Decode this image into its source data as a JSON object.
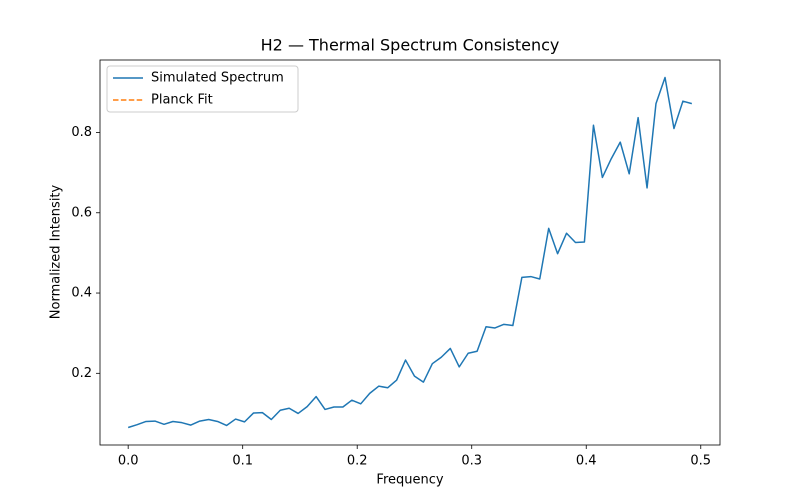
{
  "chart_data": {
    "type": "line",
    "title": "H2 — Thermal Spectrum Consistency",
    "xlabel": "Frequency",
    "ylabel": "Normalized Intensity",
    "x": [
      0,
      0.0078,
      0.0156,
      0.0234,
      0.0313,
      0.0391,
      0.0469,
      0.0547,
      0.0625,
      0.0703,
      0.0781,
      0.0859,
      0.0938,
      0.1016,
      0.1094,
      0.1172,
      0.125,
      0.1328,
      0.1406,
      0.1484,
      0.1563,
      0.1641,
      0.1719,
      0.1797,
      0.1875,
      0.1953,
      0.2031,
      0.2109,
      0.2188,
      0.2266,
      0.2344,
      0.2422,
      0.25,
      0.2578,
      0.2656,
      0.2734,
      0.2813,
      0.2891,
      0.2969,
      0.3047,
      0.3125,
      0.3203,
      0.3281,
      0.3359,
      0.3438,
      0.3516,
      0.3594,
      0.3672,
      0.375,
      0.3828,
      0.3906,
      0.3984,
      0.4063,
      0.4141,
      0.4219,
      0.4297,
      0.4375,
      0.4453,
      0.4531,
      0.4609,
      0.4688,
      0.4766,
      0.4844,
      0.4922
    ],
    "series": [
      {
        "name": "Simulated Spectrum",
        "color": "#1f77b4",
        "dash": "solid",
        "values": [
          0.065,
          0.072,
          0.08,
          0.081,
          0.073,
          0.08,
          0.077,
          0.071,
          0.081,
          0.085,
          0.08,
          0.07,
          0.086,
          0.079,
          0.101,
          0.102,
          0.085,
          0.108,
          0.113,
          0.1,
          0.117,
          0.142,
          0.11,
          0.116,
          0.116,
          0.133,
          0.124,
          0.15,
          0.168,
          0.164,
          0.183,
          0.233,
          0.193,
          0.178,
          0.224,
          0.24,
          0.262,
          0.216,
          0.25,
          0.255,
          0.316,
          0.313,
          0.322,
          0.319,
          0.439,
          0.441,
          0.435,
          0.561,
          0.498,
          0.549,
          0.526,
          0.527,
          0.818,
          0.688,
          0.735,
          0.776,
          0.697,
          0.837,
          0.662,
          0.872,
          0.937,
          0.81,
          0.878,
          0.872
        ]
      },
      {
        "name": "Planck Fit",
        "color": "#ff7f0e",
        "dash": "dashed",
        "values": [
          null,
          null,
          null,
          null,
          null,
          null,
          null,
          null,
          null,
          null,
          null,
          null,
          null,
          null,
          null,
          null,
          null,
          null,
          null,
          null,
          null,
          null,
          null,
          null,
          null,
          null,
          null,
          null,
          null,
          null,
          null,
          null,
          null,
          null,
          null,
          null,
          null,
          null,
          null,
          null,
          null,
          null,
          null,
          null,
          null,
          null,
          null,
          null,
          null,
          null,
          null,
          null,
          null,
          null,
          null,
          null,
          null,
          null,
          null,
          null,
          null,
          null,
          null,
          null
        ]
      }
    ],
    "xlim": [
      -0.0246,
      0.5168
    ],
    "ylim": [
      0.0214,
      0.9806
    ],
    "xticks": [
      {
        "value": 0,
        "label": "0.0"
      },
      0.1,
      0.2,
      0.3,
      0.4,
      0.5
    ],
    "yticks": [
      0.2,
      0.4,
      0.6,
      0.8
    ],
    "grid": false,
    "legend": "upper left"
  }
}
